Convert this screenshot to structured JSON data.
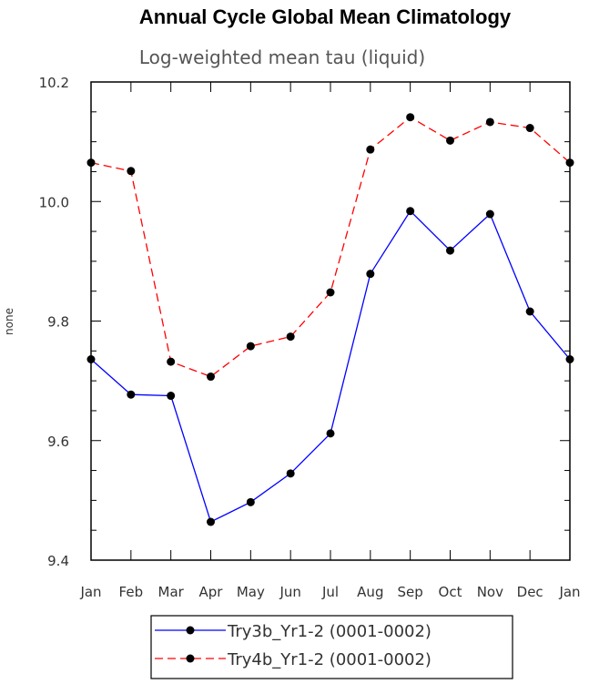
{
  "chart_data": {
    "type": "line",
    "title": "Annual Cycle Global Mean Climatology",
    "subtitle": "Log-weighted mean tau (liquid)",
    "xlabel": "",
    "ylabel": "none",
    "categories": [
      "Jan",
      "Feb",
      "Mar",
      "Apr",
      "May",
      "Jun",
      "Jul",
      "Aug",
      "Sep",
      "Oct",
      "Nov",
      "Dec",
      "Jan"
    ],
    "ylim": [
      9.4,
      10.2
    ],
    "yticks": [
      "9.4",
      "9.6",
      "9.8",
      "10.0",
      "10.2"
    ],
    "series": [
      {
        "name": "Try3b_Yr1-2 (0001-0002)",
        "color": "#0000ff",
        "dash": "solid",
        "values": [
          9.736,
          9.677,
          9.675,
          9.464,
          9.497,
          9.545,
          9.612,
          9.879,
          9.984,
          9.918,
          9.979,
          9.816,
          9.736
        ]
      },
      {
        "name": "Try4b_Yr1-2 (0001-0002)",
        "color": "#ff0000",
        "dash": "dashed",
        "values": [
          10.065,
          10.051,
          9.732,
          9.707,
          9.758,
          9.774,
          9.848,
          10.087,
          10.141,
          10.102,
          10.133,
          10.123,
          10.065
        ]
      }
    ],
    "legend_position": "bottom"
  }
}
